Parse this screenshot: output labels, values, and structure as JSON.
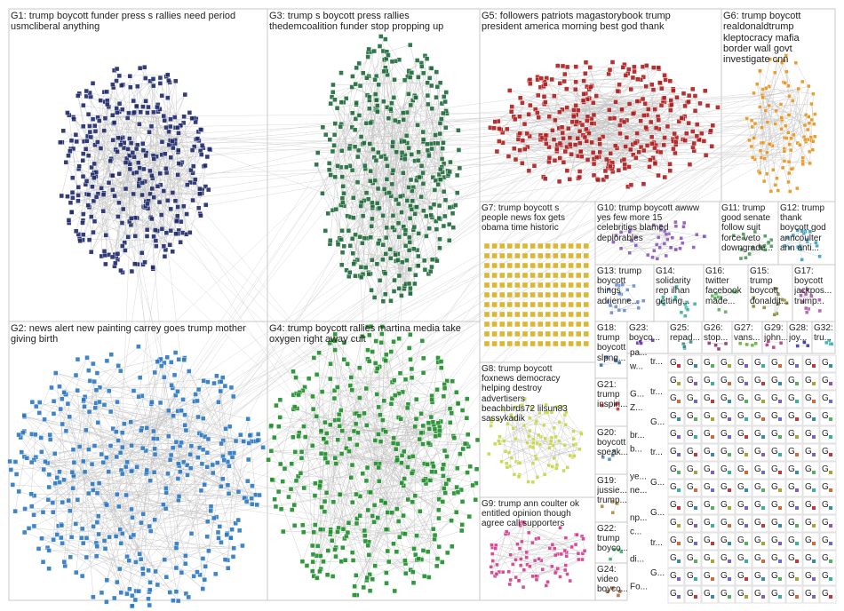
{
  "groups": [
    {
      "id": "G1",
      "lines": [
        "G1: trump boycott funder press s rallies need period",
        "usmcliberal anything"
      ],
      "color": "#1f2a6b"
    },
    {
      "id": "G2",
      "lines": [
        "G2: news alert new painting carrey goes trump mother",
        "giving birth"
      ],
      "color": "#2b78c2"
    },
    {
      "id": "G3",
      "lines": [
        "G3: trump s boycott press rallies",
        "thedemcoalition funder stop propping up"
      ],
      "color": "#1f6b3a"
    },
    {
      "id": "G4",
      "lines": [
        "G4: trump boycott rallies martina media take",
        "oxygen right away cult"
      ],
      "color": "#1e8f2a"
    },
    {
      "id": "G5",
      "lines": [
        "G5: followers patriots magastorybook trump",
        "president america morning best god thank"
      ],
      "color": "#b01e1e"
    },
    {
      "id": "G6",
      "lines": [
        "G6: trump boycott",
        "realdonaldtrump",
        "kleptocracy mafia",
        "border wall govt",
        "investigate cnn"
      ],
      "color": "#e8951e"
    },
    {
      "id": "G7",
      "lines": [
        "G7: trump boycott s",
        "people news fox gets",
        "obama time historic"
      ],
      "color": "#d9b01e"
    },
    {
      "id": "G8",
      "lines": [
        "G8: trump boycott",
        "foxnews democracy",
        "helping destroy",
        "advertisers",
        "beachbirds72 lilsun83",
        "sassykadik"
      ],
      "color": "#c7d64a"
    },
    {
      "id": "G9",
      "lines": [
        "G9: trump ann coulter ok",
        "entitled opinion though",
        "agree call supporters"
      ],
      "color": "#d23c8c"
    },
    {
      "id": "G10",
      "lines": [
        "G10: trump boycott awww",
        "yes few more 15",
        "celebrities blamed",
        "deplorables"
      ],
      "color": "#8a5ab8"
    },
    {
      "id": "G11",
      "lines": [
        "G11: trump",
        "good senate",
        "follow suit",
        "force veto",
        "downgrade..."
      ],
      "color": "#4a9a5a"
    },
    {
      "id": "G12",
      "lines": [
        "G12: trump",
        "thank",
        "boycott god",
        "anncoulter",
        "ann anti..."
      ],
      "color": "#3aa0c0"
    },
    {
      "id": "G13",
      "lines": [
        "G13: trump",
        "boycott",
        "things",
        "adrienne..."
      ],
      "color": "#6a8fd0"
    },
    {
      "id": "G14",
      "lines": [
        "G14:",
        "solidarity",
        "rep ilhan",
        "getting..."
      ],
      "color": "#3ab0a0"
    },
    {
      "id": "G15",
      "lines": [
        "G15:",
        "trump",
        "boycott",
        "donaldjt..."
      ],
      "color": "#8a8a3a"
    },
    {
      "id": "G16",
      "lines": [
        "G16:",
        "twitter",
        "facebook",
        "made..."
      ],
      "color": "#5ab05a"
    },
    {
      "id": "G17",
      "lines": [
        "G17:",
        "boycott",
        "jackpos...",
        "trump..."
      ],
      "color": "#b05ab0"
    },
    {
      "id": "G18",
      "lines": [
        "G18:",
        "trump",
        "boycott",
        "slpng..."
      ],
      "color": "#3a6ab0"
    },
    {
      "id": "G19",
      "lines": [
        "G19:",
        "jussie...",
        "trump..."
      ],
      "color": "#b08a3a"
    },
    {
      "id": "G20",
      "lines": [
        "G20:",
        "boycott",
        "speak..."
      ],
      "color": "#5a8ab0"
    },
    {
      "id": "G21",
      "lines": [
        "G21:",
        "trump",
        "inspiri..."
      ],
      "color": "#c03a3a"
    },
    {
      "id": "G22",
      "lines": [
        "G22:",
        "trump",
        "boyco..."
      ],
      "color": "#3ab06a"
    },
    {
      "id": "G23",
      "lines": [
        "G23:",
        "boyco..."
      ],
      "color": "#6a3ab0"
    },
    {
      "id": "G24",
      "lines": [
        "G24:",
        "video",
        "boyco..."
      ],
      "color": "#b06a3a"
    },
    {
      "id": "G25",
      "lines": [
        "G25:",
        "repad..."
      ],
      "color": "#3a8a8a"
    },
    {
      "id": "G26",
      "lines": [
        "G26:",
        "stop..."
      ],
      "color": "#8a3a6a"
    },
    {
      "id": "G27",
      "lines": [
        "G27:",
        "vans..."
      ],
      "color": "#6ab03a"
    },
    {
      "id": "G28",
      "lines": [
        "G28:",
        "joy..."
      ],
      "color": "#3a3ab0"
    },
    {
      "id": "G29",
      "lines": [
        "G29:",
        "john..."
      ],
      "color": "#b03a8a"
    },
    {
      "id": "G32",
      "lines": [
        "G32:",
        "tru..."
      ],
      "color": "#3ab0b0"
    }
  ],
  "mini_clusters": {
    "col_a": [
      "pa...",
      "w...",
      "",
      "G...",
      "Z...",
      "",
      "br...",
      "b...",
      "",
      "ye...",
      "ne...",
      "",
      "np...",
      "c...",
      "",
      "di...",
      "",
      "Fo..."
    ],
    "col_b": [
      "tr...",
      "",
      "tr...",
      "",
      "G...",
      "",
      "tr...",
      "",
      "G...",
      "",
      "G...",
      "",
      "tr...",
      "",
      "G..."
    ],
    "tile_text": "G"
  }
}
